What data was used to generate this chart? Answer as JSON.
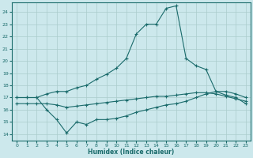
{
  "xlabel": "Humidex (Indice chaleur)",
  "background_color": "#cce8ec",
  "grid_color": "#aacccc",
  "line_color": "#1a6b6b",
  "x_ticks": [
    0,
    1,
    2,
    3,
    4,
    5,
    6,
    7,
    8,
    9,
    10,
    11,
    12,
    13,
    14,
    15,
    16,
    17,
    18,
    19,
    20,
    21,
    22,
    23
  ],
  "y_ticks": [
    14,
    15,
    16,
    17,
    18,
    19,
    20,
    21,
    22,
    23,
    24
  ],
  "ylim": [
    13.5,
    24.8
  ],
  "xlim": [
    -0.5,
    23.5
  ],
  "line1_x": [
    0,
    1,
    2,
    3,
    4,
    5,
    6,
    7,
    8,
    9,
    10,
    11,
    12,
    13,
    14,
    15,
    16,
    17,
    18,
    19,
    20,
    21,
    22,
    23
  ],
  "line1_y": [
    17.0,
    17.0,
    17.0,
    17.3,
    17.5,
    17.5,
    17.8,
    18.0,
    18.5,
    18.9,
    19.4,
    20.2,
    22.2,
    23.0,
    23.0,
    24.3,
    24.5,
    20.2,
    19.6,
    19.3,
    17.5,
    17.5,
    17.3,
    17.0
  ],
  "line2_x": [
    0,
    1,
    2,
    3,
    4,
    5,
    6,
    7,
    8,
    9,
    10,
    11,
    12,
    13,
    14,
    15,
    16,
    17,
    18,
    19,
    20,
    21,
    22,
    23
  ],
  "line2_y": [
    17.0,
    17.0,
    17.0,
    16.0,
    15.2,
    14.1,
    15.0,
    14.8,
    15.2,
    15.2,
    15.3,
    15.5,
    15.8,
    16.0,
    16.2,
    16.4,
    16.5,
    16.7,
    17.0,
    17.3,
    17.5,
    17.2,
    17.0,
    16.5
  ],
  "line3_x": [
    0,
    1,
    2,
    3,
    4,
    5,
    6,
    7,
    8,
    9,
    10,
    11,
    12,
    13,
    14,
    15,
    16,
    17,
    18,
    19,
    20,
    21,
    22,
    23
  ],
  "line3_y": [
    16.5,
    16.5,
    16.5,
    16.5,
    16.4,
    16.2,
    16.3,
    16.4,
    16.5,
    16.6,
    16.7,
    16.8,
    16.9,
    17.0,
    17.1,
    17.1,
    17.2,
    17.3,
    17.4,
    17.4,
    17.3,
    17.1,
    16.9,
    16.7
  ]
}
